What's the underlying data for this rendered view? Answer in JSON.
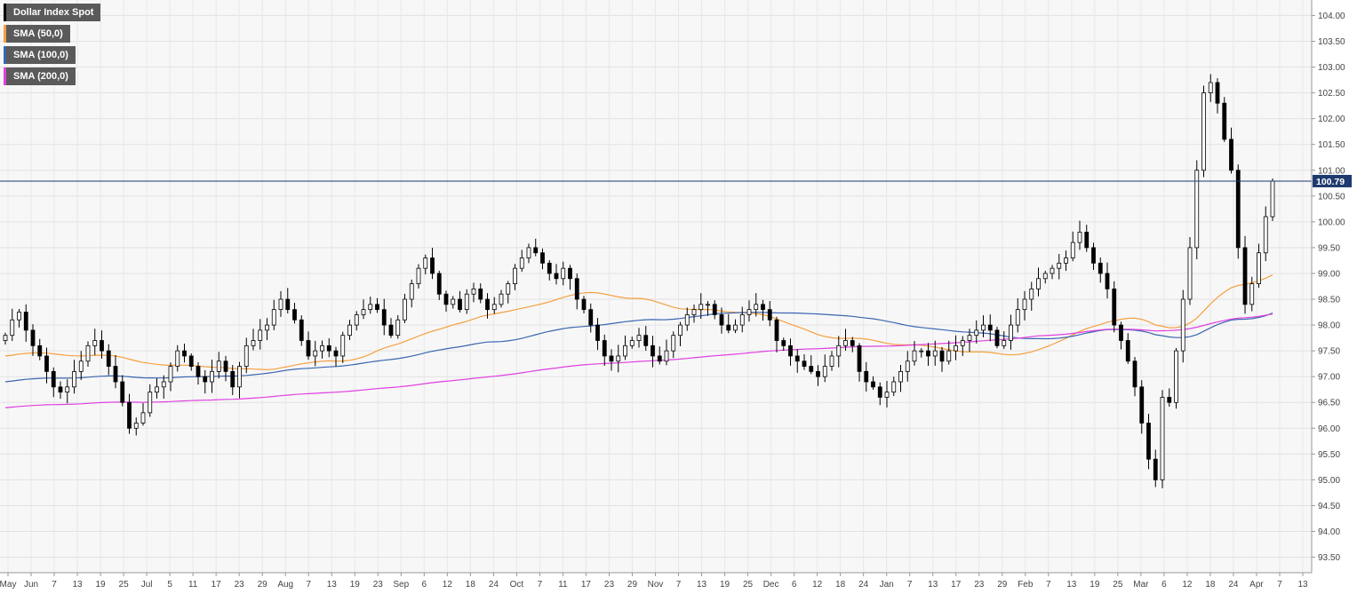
{
  "chart_data": {
    "type": "candlestick",
    "title": "Dollar Index Spot",
    "legend": [
      {
        "label": "Dollar Index Spot",
        "color": "#000000"
      },
      {
        "label": "SMA (50,0)",
        "color": "#f5a040"
      },
      {
        "label": "SMA (100,0)",
        "color": "#3a66b0"
      },
      {
        "label": "SMA (200,0)",
        "color": "#e040e0"
      }
    ],
    "last_price": "100.79",
    "y_axis": {
      "min": 93.2,
      "max": 104.3,
      "ticks": [
        "93.50",
        "94.00",
        "94.50",
        "95.00",
        "95.50",
        "96.00",
        "96.50",
        "97.00",
        "97.50",
        "98.00",
        "98.50",
        "99.00",
        "99.50",
        "100.00",
        "100.50",
        "101.00",
        "101.50",
        "102.00",
        "102.50",
        "103.00",
        "103.50",
        "104.00"
      ]
    },
    "x_axis": {
      "labels": [
        "May",
        "Jun",
        "7",
        "13",
        "19",
        "25",
        "Jul",
        "5",
        "11",
        "17",
        "23",
        "29",
        "Aug",
        "7",
        "13",
        "19",
        "23",
        "Sep",
        "6",
        "12",
        "18",
        "24",
        "Oct",
        "7",
        "11",
        "17",
        "23",
        "29",
        "Nov",
        "7",
        "13",
        "19",
        "25",
        "Dec",
        "6",
        "12",
        "18",
        "24",
        "Jan",
        "7",
        "13",
        "17",
        "23",
        "29",
        "Feb",
        "7",
        "13",
        "19",
        "25",
        "Mar",
        "6",
        "12",
        "18",
        "24",
        "Apr",
        "7",
        "13"
      ]
    },
    "series": [
      {
        "name": "Dollar Index Spot",
        "candle_closes": [
          97.8,
          98.1,
          98.25,
          97.9,
          97.6,
          97.4,
          97.1,
          96.8,
          96.7,
          96.8,
          97.1,
          97.3,
          97.6,
          97.7,
          97.5,
          97.2,
          96.9,
          96.5,
          96.0,
          96.1,
          96.3,
          96.7,
          96.8,
          96.9,
          97.2,
          97.5,
          97.4,
          97.2,
          97.0,
          96.9,
          97.1,
          97.3,
          97.1,
          96.8,
          97.2,
          97.6,
          97.7,
          97.9,
          98.0,
          98.3,
          98.5,
          98.3,
          98.1,
          97.7,
          97.4,
          97.5,
          97.6,
          97.5,
          97.4,
          97.8,
          98.0,
          98.2,
          98.3,
          98.4,
          98.3,
          98.0,
          97.8,
          98.1,
          98.5,
          98.8,
          99.1,
          99.3,
          99.0,
          98.6,
          98.4,
          98.5,
          98.3,
          98.6,
          98.7,
          98.5,
          98.3,
          98.4,
          98.6,
          98.8,
          99.1,
          99.3,
          99.5,
          99.4,
          99.2,
          99.0,
          98.9,
          99.1,
          98.9,
          98.5,
          98.3,
          98.0,
          97.7,
          97.4,
          97.3,
          97.4,
          97.6,
          97.7,
          97.8,
          97.6,
          97.4,
          97.3,
          97.5,
          97.8,
          98.0,
          98.2,
          98.3,
          98.4,
          98.4,
          98.2,
          98.0,
          97.9,
          98.0,
          98.2,
          98.3,
          98.4,
          98.3,
          98.1,
          97.7,
          97.6,
          97.4,
          97.3,
          97.2,
          97.1,
          97.0,
          97.2,
          97.4,
          97.6,
          97.7,
          97.6,
          97.1,
          96.9,
          96.8,
          96.6,
          96.7,
          96.9,
          97.1,
          97.3,
          97.5,
          97.5,
          97.4,
          97.5,
          97.3,
          97.5,
          97.6,
          97.7,
          97.8,
          97.9,
          98.0,
          97.9,
          97.6,
          97.7,
          98.0,
          98.3,
          98.5,
          98.7,
          98.9,
          99.0,
          99.1,
          99.2,
          99.3,
          99.6,
          99.8,
          99.5,
          99.2,
          99.0,
          98.7,
          98.0,
          97.7,
          97.3,
          96.8,
          96.1,
          95.4,
          95.0,
          96.6,
          96.5,
          97.5,
          98.5,
          99.5,
          101.0,
          102.5,
          102.7,
          102.3,
          101.6,
          101.0,
          99.5,
          98.4,
          98.8,
          99.4,
          100.1,
          100.79
        ]
      },
      {
        "name": "SMA (50,0)"
      },
      {
        "name": "SMA (100,0)"
      },
      {
        "name": "SMA (200,0)"
      }
    ],
    "grid": true
  }
}
